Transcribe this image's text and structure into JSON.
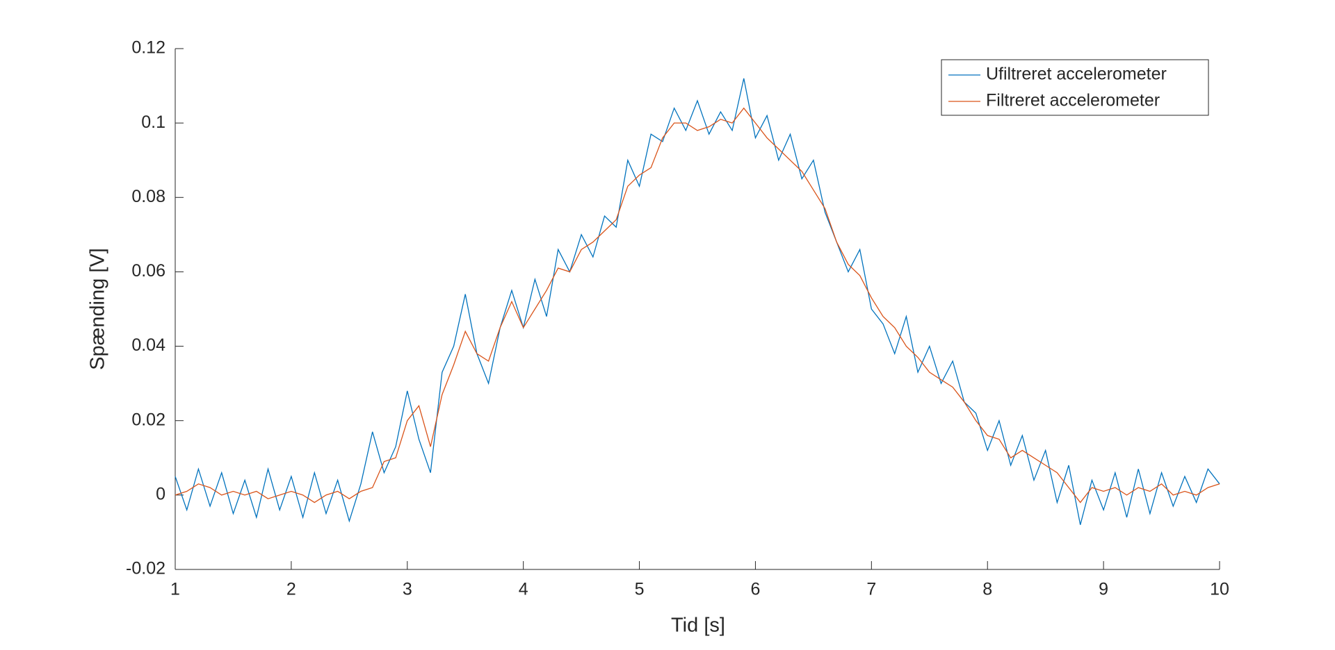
{
  "chart_data": {
    "type": "line",
    "x_label": "Tid [s]",
    "y_label": "Spænding [V]",
    "x": [
      1.0,
      1.1,
      1.2,
      1.3,
      1.4,
      1.5,
      1.6,
      1.7,
      1.8,
      1.9,
      2.0,
      2.1,
      2.2,
      2.3,
      2.4,
      2.5,
      2.6,
      2.7,
      2.8,
      2.9,
      3.0,
      3.1,
      3.2,
      3.3,
      3.4,
      3.5,
      3.6,
      3.7,
      3.8,
      3.9,
      4.0,
      4.1,
      4.2,
      4.3,
      4.4,
      4.5,
      4.6,
      4.7,
      4.8,
      4.9,
      5.0,
      5.1,
      5.2,
      5.3,
      5.4,
      5.5,
      5.6,
      5.7,
      5.8,
      5.9,
      6.0,
      6.1,
      6.2,
      6.3,
      6.4,
      6.5,
      6.6,
      6.7,
      6.8,
      6.9,
      7.0,
      7.1,
      7.2,
      7.3,
      7.4,
      7.5,
      7.6,
      7.7,
      7.8,
      7.9,
      8.0,
      8.1,
      8.2,
      8.3,
      8.4,
      8.5,
      8.6,
      8.7,
      8.8,
      8.9,
      9.0,
      9.1,
      9.2,
      9.3,
      9.4,
      9.5,
      9.6,
      9.7,
      9.8,
      9.9,
      10.0
    ],
    "series": [
      {
        "name": "Ufiltreret accelerometer",
        "color": "#0072bd",
        "values": [
          0.005,
          -0.004,
          0.007,
          -0.003,
          0.006,
          -0.005,
          0.004,
          -0.006,
          0.007,
          -0.004,
          0.005,
          -0.006,
          0.006,
          -0.005,
          0.004,
          -0.007,
          0.003,
          0.017,
          0.006,
          0.013,
          0.028,
          0.015,
          0.006,
          0.033,
          0.04,
          0.054,
          0.038,
          0.03,
          0.045,
          0.055,
          0.045,
          0.058,
          0.048,
          0.066,
          0.06,
          0.07,
          0.064,
          0.075,
          0.072,
          0.09,
          0.083,
          0.097,
          0.095,
          0.104,
          0.098,
          0.106,
          0.097,
          0.103,
          0.098,
          0.112,
          0.096,
          0.102,
          0.09,
          0.097,
          0.085,
          0.09,
          0.076,
          0.068,
          0.06,
          0.066,
          0.05,
          0.046,
          0.038,
          0.048,
          0.033,
          0.04,
          0.03,
          0.036,
          0.025,
          0.022,
          0.012,
          0.02,
          0.008,
          0.016,
          0.004,
          0.012,
          -0.002,
          0.008,
          -0.008,
          0.004,
          -0.004,
          0.006,
          -0.006,
          0.007,
          -0.005,
          0.006,
          -0.003,
          0.005,
          -0.002,
          0.007,
          0.003
        ]
      },
      {
        "name": "Filtreret accelerometer",
        "color": "#d95319",
        "values": [
          0.0,
          0.001,
          0.003,
          0.002,
          0.0,
          0.001,
          0.0,
          0.001,
          -0.001,
          0.0,
          0.001,
          0.0,
          -0.002,
          0.0,
          0.001,
          -0.001,
          0.001,
          0.002,
          0.009,
          0.01,
          0.02,
          0.024,
          0.013,
          0.027,
          0.035,
          0.044,
          0.038,
          0.036,
          0.045,
          0.052,
          0.045,
          0.05,
          0.055,
          0.061,
          0.06,
          0.066,
          0.068,
          0.071,
          0.074,
          0.083,
          0.086,
          0.088,
          0.096,
          0.1,
          0.1,
          0.098,
          0.099,
          0.101,
          0.1,
          0.104,
          0.1,
          0.096,
          0.093,
          0.09,
          0.087,
          0.082,
          0.077,
          0.068,
          0.062,
          0.059,
          0.053,
          0.048,
          0.045,
          0.04,
          0.037,
          0.033,
          0.031,
          0.029,
          0.025,
          0.02,
          0.016,
          0.015,
          0.01,
          0.012,
          0.01,
          0.008,
          0.006,
          0.002,
          -0.002,
          0.002,
          0.001,
          0.002,
          0.0,
          0.002,
          0.001,
          0.003,
          0.0,
          0.001,
          0.0,
          0.002,
          0.003
        ]
      }
    ],
    "xlim": [
      1,
      10
    ],
    "xticks": [
      1,
      2,
      3,
      4,
      5,
      6,
      7,
      8,
      9,
      10
    ],
    "ylim": [
      -0.02,
      0.12
    ],
    "yticks": [
      -0.02,
      0,
      0.02,
      0.04,
      0.06,
      0.08,
      0.1,
      0.12
    ],
    "legend": "upper right"
  }
}
